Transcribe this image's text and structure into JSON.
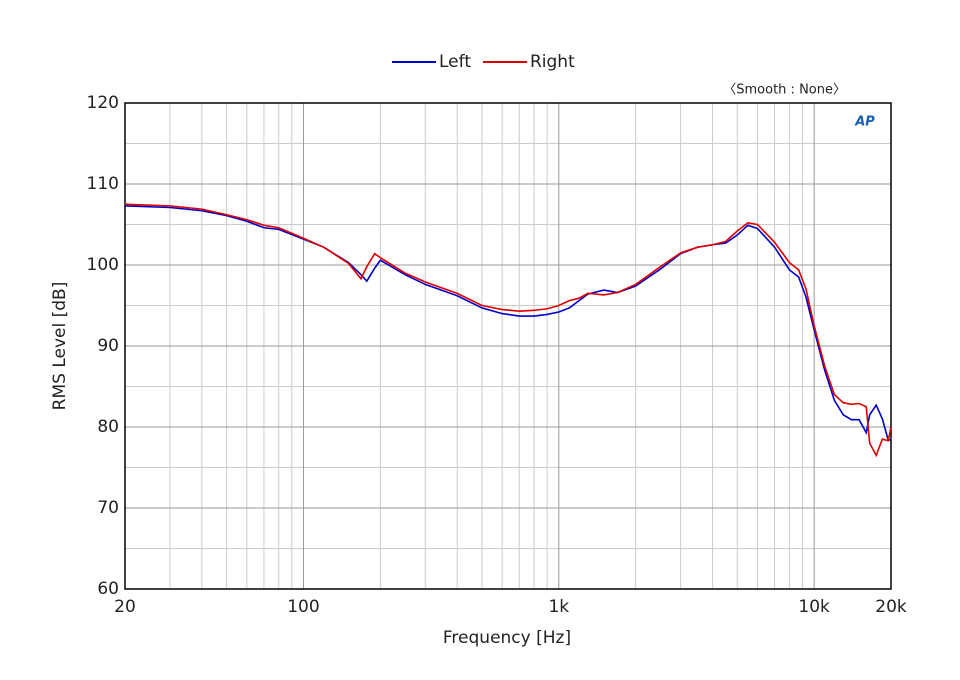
{
  "chart_data": {
    "type": "line",
    "annotation": "〈Smooth : None〉",
    "logo": "AP",
    "xlabel": "Frequency [Hz]",
    "ylabel": "RMS Level [dB]",
    "xscale": "log",
    "grid": true,
    "legend": "top",
    "xlim": [
      20,
      20000
    ],
    "ylim": [
      60,
      120
    ],
    "xticks": [
      20,
      100,
      {
        "value": 1000,
        "label": "1k"
      },
      {
        "value": 10000,
        "label": "10k"
      },
      {
        "value": 20000,
        "label": "20k"
      }
    ],
    "yticks": [
      60,
      70,
      80,
      90,
      100,
      110,
      120
    ],
    "xminorticks": [
      30,
      40,
      50,
      60,
      70,
      80,
      90,
      200,
      300,
      400,
      500,
      600,
      700,
      800,
      900,
      2000,
      3000,
      4000,
      5000,
      6000,
      7000,
      8000,
      9000
    ],
    "yminorticks": [
      65,
      75,
      85,
      95,
      105,
      115
    ],
    "x": [
      20,
      30,
      40,
      50,
      60,
      70,
      80,
      100,
      120,
      150,
      168,
      177,
      190,
      200,
      250,
      300,
      400,
      500,
      600,
      700,
      800,
      900,
      1000,
      1100,
      1200,
      1300,
      1500,
      1700,
      2000,
      2500,
      3000,
      3500,
      4000,
      4500,
      5000,
      5500,
      6000,
      7000,
      8000,
      8700,
      9300,
      10000,
      11000,
      12000,
      13000,
      14000,
      15000,
      16000,
      16500,
      17500,
      18500,
      19500,
      20000
    ],
    "series": [
      {
        "name": "Left",
        "color": "#0000c8",
        "values": [
          107.3,
          107.1,
          106.7,
          106.1,
          105.4,
          104.6,
          104.4,
          103.2,
          102.2,
          100.3,
          98.8,
          98.0,
          99.6,
          100.6,
          98.8,
          97.6,
          96.2,
          94.7,
          94.0,
          93.7,
          93.7,
          93.9,
          94.2,
          94.7,
          95.6,
          96.4,
          96.9,
          96.6,
          97.4,
          99.5,
          101.4,
          102.2,
          102.5,
          102.7,
          103.7,
          104.9,
          104.5,
          102.2,
          99.4,
          98.5,
          96.0,
          92.0,
          87.0,
          83.3,
          81.5,
          80.9,
          80.9,
          79.3,
          81.5,
          82.7,
          81.0,
          78.4,
          78.4
        ]
      },
      {
        "name": "Right",
        "color": "#e00000",
        "values": [
          107.5,
          107.3,
          106.9,
          106.2,
          105.6,
          104.9,
          104.6,
          103.3,
          102.2,
          100.2,
          98.3,
          99.8,
          101.4,
          100.9,
          99.0,
          97.9,
          96.5,
          95.0,
          94.5,
          94.3,
          94.4,
          94.6,
          95.0,
          95.6,
          95.9,
          96.5,
          96.3,
          96.6,
          97.6,
          99.8,
          101.5,
          102.2,
          102.5,
          102.9,
          104.2,
          105.2,
          105.0,
          102.8,
          100.3,
          99.4,
          97.0,
          92.5,
          87.5,
          84.0,
          83.0,
          82.8,
          82.9,
          82.5,
          78.0,
          76.5,
          78.5,
          78.3,
          80.0
        ]
      }
    ]
  }
}
